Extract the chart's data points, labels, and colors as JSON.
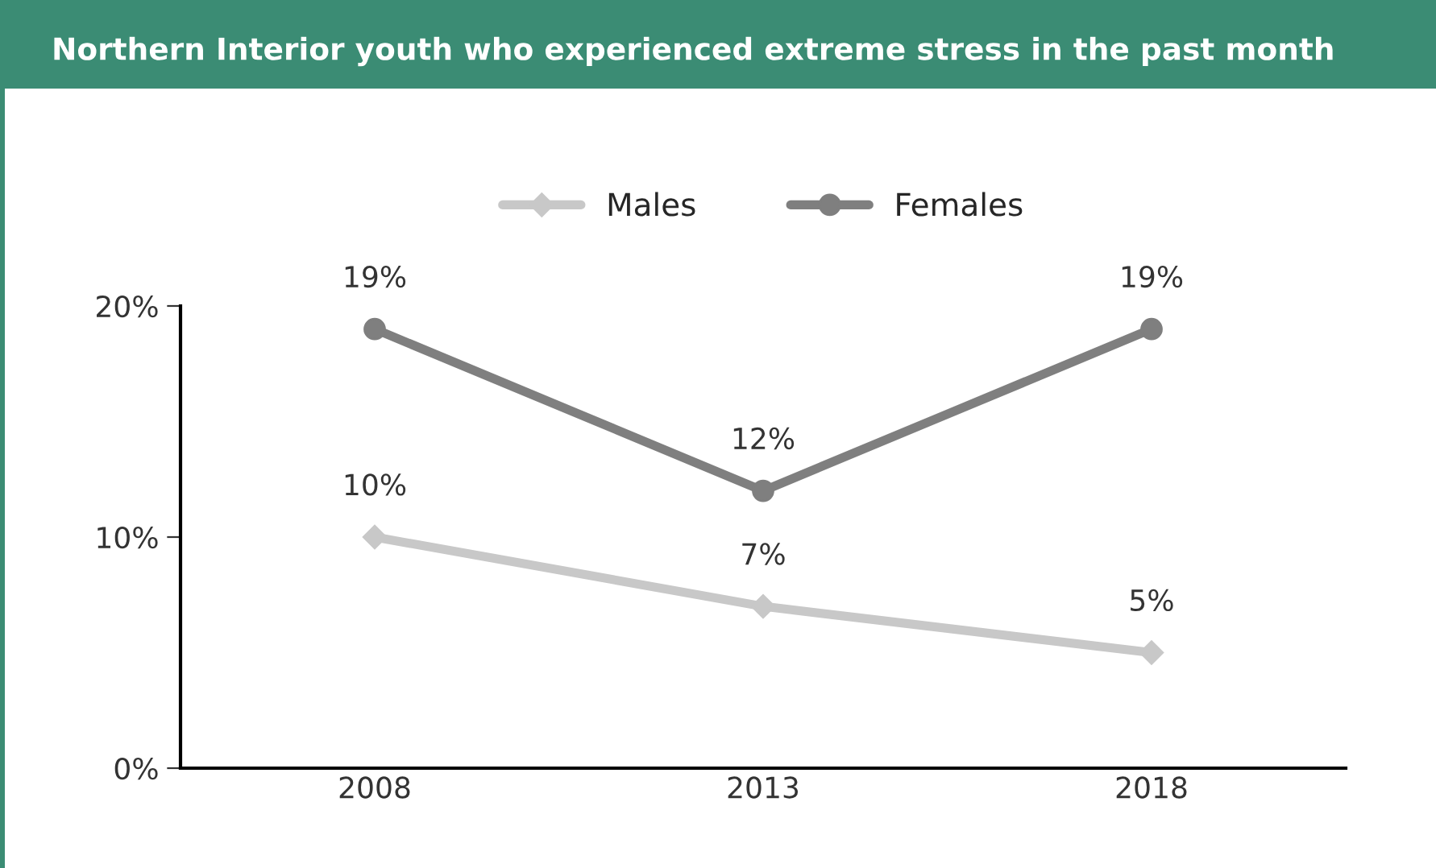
{
  "chart_data": {
    "type": "line",
    "title": "Northern Interior youth who experienced extreme stress in the past month",
    "categories": [
      "2008",
      "2013",
      "2018"
    ],
    "series": [
      {
        "name": "Males",
        "color": "#c8c8c8",
        "marker": "diamond",
        "values": [
          10,
          7,
          5
        ],
        "value_labels": [
          "10%",
          "7%",
          "5%"
        ]
      },
      {
        "name": "Females",
        "color": "#7f7f7f",
        "marker": "circle",
        "values": [
          19,
          12,
          19
        ],
        "value_labels": [
          "19%",
          "12%",
          "19%"
        ]
      }
    ],
    "ylim": [
      0,
      20
    ],
    "yticks": [
      {
        "value": 0,
        "label": "0%"
      },
      {
        "value": 10,
        "label": "10%"
      },
      {
        "value": 20,
        "label": "20%"
      }
    ],
    "grid": false,
    "legend": "top",
    "line_style": "solid"
  }
}
